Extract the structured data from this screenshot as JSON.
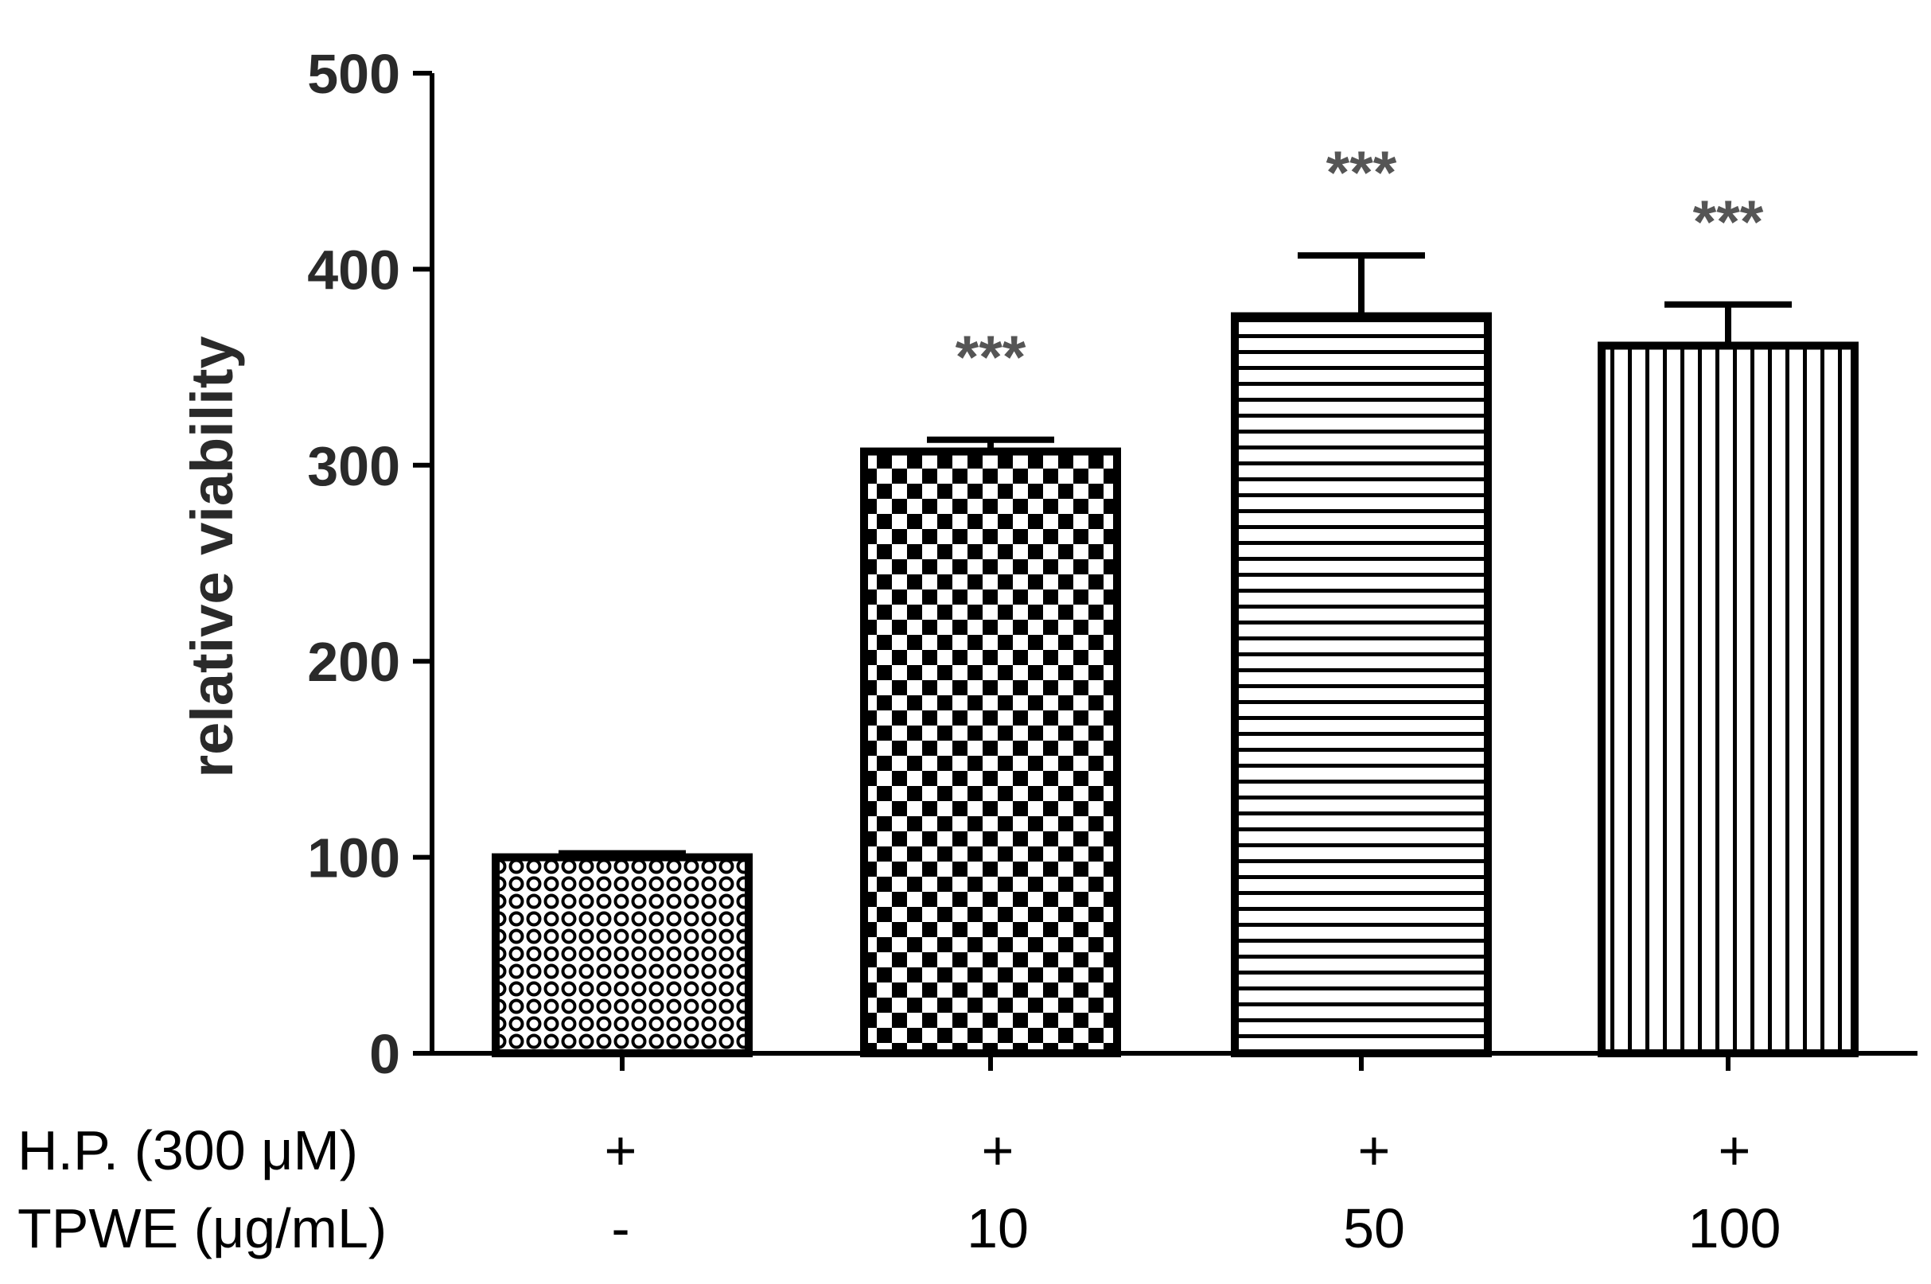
{
  "chart_data": {
    "type": "bar",
    "ylabel": "relative viability",
    "ylim": [
      0,
      500
    ],
    "yticks": [
      0,
      100,
      200,
      300,
      400,
      500
    ],
    "grid": false,
    "legend": "none",
    "bars": [
      {
        "value": 100,
        "error": 2,
        "significance": "",
        "pattern": "pattern-dots"
      },
      {
        "value": 307,
        "error": 6,
        "significance": "***",
        "pattern": "pattern-checker"
      },
      {
        "value": 376,
        "error": 31,
        "significance": "***",
        "pattern": "pattern-hstripes"
      },
      {
        "value": 361,
        "error": 21,
        "significance": "***",
        "pattern": "pattern-vstripes"
      }
    ],
    "conditions": [
      {
        "label": "H.P. (300 μM)",
        "values": [
          "+",
          "+",
          "+",
          "+"
        ]
      },
      {
        "label": "TPWE (μg/mL)",
        "values": [
          "-",
          "10",
          "50",
          "100"
        ]
      }
    ]
  }
}
